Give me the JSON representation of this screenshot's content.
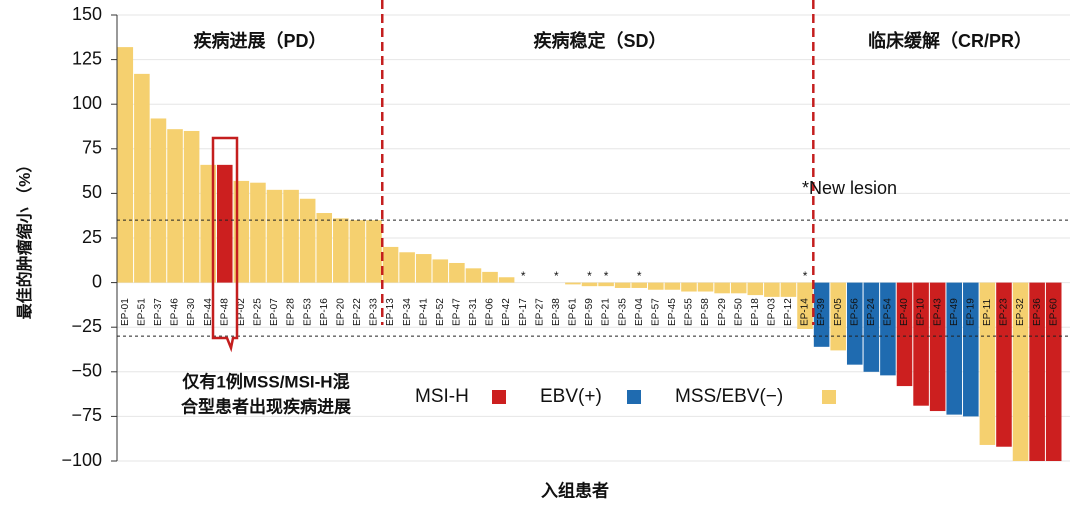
{
  "chart_data": {
    "type": "bar",
    "y_label": "最佳的肿瘤缩小 （%）",
    "x_label": "入组患者",
    "categories": [
      "EP-01",
      "EP-51",
      "EP-37",
      "EP-46",
      "EP-30",
      "EP-44",
      "EP-48",
      "EP-02",
      "EP-25",
      "EP-07",
      "EP-28",
      "EP-53",
      "EP-16",
      "EP-20",
      "EP-22",
      "EP-33",
      "EP-13",
      "EP-34",
      "EP-41",
      "EP-52",
      "EP-47",
      "EP-31",
      "EP-06",
      "EP-42",
      "EP-17",
      "EP-27",
      "EP-38",
      "EP-61",
      "EP-59",
      "EP-21",
      "EP-35",
      "EP-04",
      "EP-57",
      "EP-45",
      "EP-55",
      "EP-58",
      "EP-29",
      "EP-50",
      "EP-18",
      "EP-03",
      "EP-12",
      "EP-14",
      "EP-39",
      "EP-05",
      "EP-56",
      "EP-24",
      "EP-54",
      "EP-40",
      "EP-10",
      "EP-43",
      "EP-49",
      "EP-19",
      "EP-11",
      "EP-23",
      "EP-32",
      "EP-36",
      "EP-60"
    ],
    "values": [
      132,
      117,
      92,
      86,
      85,
      66,
      66,
      57,
      56,
      52,
      52,
      47,
      39,
      36,
      35,
      35,
      20,
      17,
      16,
      13,
      11,
      8,
      6,
      3,
      0,
      0,
      0,
      -1,
      -2,
      -2,
      -3,
      -3,
      -4,
      -4,
      -5,
      -5,
      -6,
      -6,
      -7,
      -8,
      -8,
      -26,
      -36,
      -38,
      -46,
      -50,
      -52,
      -58,
      -69,
      -72,
      -74,
      -75,
      -91,
      -92,
      -100,
      -100,
      -100
    ],
    "colors": [
      "#f5d06f",
      "#f5d06f",
      "#f5d06f",
      "#f5d06f",
      "#f5d06f",
      "#f5d06f",
      "#cc1f1f",
      "#f5d06f",
      "#f5d06f",
      "#f5d06f",
      "#f5d06f",
      "#f5d06f",
      "#f5d06f",
      "#f5d06f",
      "#f5d06f",
      "#f5d06f",
      "#f5d06f",
      "#f5d06f",
      "#f5d06f",
      "#f5d06f",
      "#f5d06f",
      "#f5d06f",
      "#f5d06f",
      "#f5d06f",
      "#f5d06f",
      "#f5d06f",
      "#f5d06f",
      "#f5d06f",
      "#f5d06f",
      "#f5d06f",
      "#f5d06f",
      "#f5d06f",
      "#f5d06f",
      "#f5d06f",
      "#f5d06f",
      "#f5d06f",
      "#f5d06f",
      "#f5d06f",
      "#f5d06f",
      "#f5d06f",
      "#f5d06f",
      "#f5d06f",
      "#1f6bb0",
      "#f5d06f",
      "#1f6bb0",
      "#1f6bb0",
      "#1f6bb0",
      "#cc1f1f",
      "#cc1f1f",
      "#cc1f1f",
      "#1f6bb0",
      "#1f6bb0",
      "#f5d06f",
      "#cc1f1f",
      "#f5d06f",
      "#cc1f1f",
      "#cc1f1f"
    ],
    "markers": [
      {
        "index": 24,
        "label": "*"
      },
      {
        "index": 26,
        "label": "*"
      },
      {
        "index": 28,
        "label": "*"
      },
      {
        "index": 29,
        "label": "*"
      },
      {
        "index": 31,
        "label": "*"
      },
      {
        "index": 41,
        "label": "*"
      }
    ],
    "legend": [
      {
        "name": "MSI-H",
        "color": "#cc1f1f"
      },
      {
        "name": "EBV(+)",
        "color": "#1f6bb0"
      },
      {
        "name": "MSS/EBV(−)",
        "color": "#f5d06f"
      }
    ],
    "regions": [
      "疾病进展（PD）",
      "疾病稳定（SD）",
      "临床缓解（CR/PR）"
    ],
    "reference_lines": [
      35,
      -30
    ],
    "annotation": "*New lesion",
    "callout": [
      "仅有1例MSS/MSI-H混",
      "合型患者出现疾病进展"
    ],
    "ylim": [
      -100,
      150
    ],
    "yticks": [
      {
        "value": -100,
        "label": "−100"
      },
      {
        "value": -75,
        "label": "−75"
      },
      {
        "value": -50,
        "label": "−50"
      },
      {
        "value": -25,
        "label": "−25"
      },
      0,
      25,
      50,
      75,
      100,
      125,
      150
    ],
    "grid": true
  }
}
